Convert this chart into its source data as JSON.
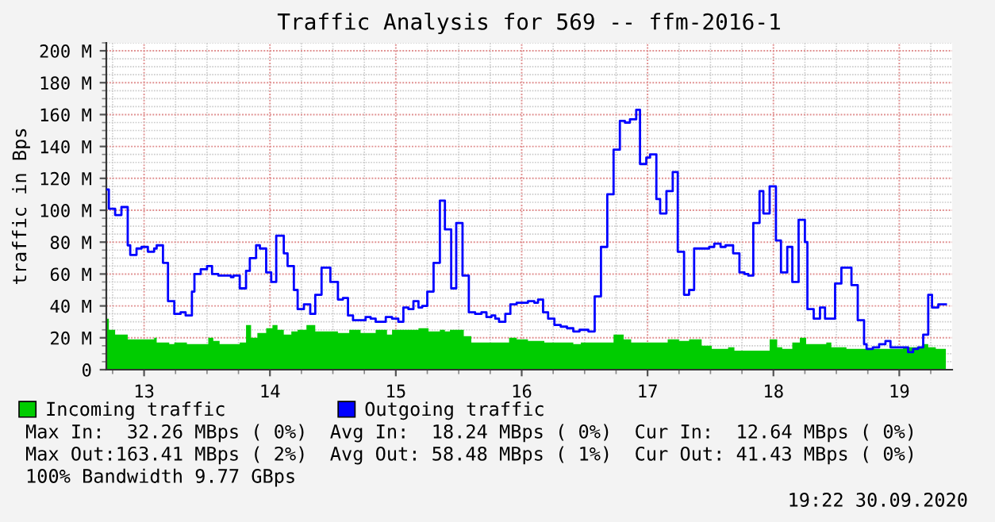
{
  "chart_data": {
    "type": "area",
    "title": "Traffic Analysis for 569 -- ffm-2016-1",
    "ylabel": "traffic in Bps",
    "xlim": [
      12.7,
      19.42
    ],
    "xticks": [
      13,
      14,
      15,
      16,
      17,
      18,
      19
    ],
    "ylim": [
      0,
      205
    ],
    "yticks": [
      {
        "value": 0,
        "label": "0"
      },
      {
        "value": 20,
        "label": "20 M"
      },
      {
        "value": 40,
        "label": "40 M"
      },
      {
        "value": 60,
        "label": "60 M"
      },
      {
        "value": 80,
        "label": "80 M"
      },
      {
        "value": 100,
        "label": "100 M"
      },
      {
        "value": 120,
        "label": "120 M"
      },
      {
        "value": 140,
        "label": "140 M"
      },
      {
        "value": 160,
        "label": "160 M"
      },
      {
        "value": 180,
        "label": "180 M"
      },
      {
        "value": 200,
        "label": "200 M"
      }
    ],
    "grid": true,
    "legend": "bottom",
    "series": [
      {
        "name": "Incoming traffic",
        "color": "#00cc00",
        "x": [
          12.7,
          12.72,
          12.77,
          12.87,
          13.08,
          13.1,
          13.2,
          13.24,
          13.34,
          13.51,
          13.55,
          13.6,
          13.76,
          13.81,
          13.85,
          13.9,
          13.97,
          14.02,
          14.06,
          14.11,
          14.17,
          14.22,
          14.29,
          14.36,
          14.54,
          14.63,
          14.72,
          14.84,
          14.93,
          14.97,
          15.18,
          15.26,
          15.35,
          15.39,
          15.43,
          15.54,
          15.6,
          15.9,
          15.96,
          16.05,
          16.18,
          16.41,
          16.47,
          16.73,
          16.81,
          16.87,
          17.16,
          17.25,
          17.33,
          17.43,
          17.51,
          17.64,
          17.69,
          17.97,
          18.03,
          18.07,
          18.15,
          18.21,
          18.26,
          18.42,
          18.46,
          18.58,
          19.03,
          19.19,
          19.23,
          19.29,
          19.37
        ],
        "values": [
          32,
          25,
          22,
          19,
          20,
          17,
          16,
          17,
          16,
          20,
          18,
          16,
          17,
          28,
          20,
          23,
          26,
          28,
          25,
          22,
          24,
          25,
          28,
          24,
          23,
          25,
          23,
          25,
          22,
          25,
          26,
          24,
          25,
          24,
          25,
          21,
          17,
          20,
          19,
          18,
          17,
          16,
          17,
          22,
          19,
          17,
          19,
          18,
          19,
          15,
          13,
          14,
          12,
          19,
          14,
          13,
          17,
          20,
          16,
          17,
          14,
          13,
          14,
          16,
          14,
          13,
          13
        ]
      },
      {
        "name": "Outgoing traffic",
        "type": "step",
        "color": "#0000ff",
        "x": [
          12.7,
          12.72,
          12.77,
          12.82,
          12.87,
          12.89,
          12.94,
          12.98,
          13.03,
          13.08,
          13.1,
          13.15,
          13.19,
          13.24,
          13.29,
          13.33,
          13.38,
          13.4,
          13.45,
          13.5,
          13.54,
          13.59,
          13.69,
          13.71,
          13.76,
          13.81,
          13.84,
          13.89,
          13.92,
          13.97,
          14.01,
          14.05,
          14.11,
          14.14,
          14.19,
          14.22,
          14.27,
          14.32,
          14.36,
          14.41,
          14.48,
          14.54,
          14.58,
          14.62,
          14.66,
          14.76,
          14.8,
          14.84,
          14.92,
          14.97,
          15.02,
          15.06,
          15.1,
          15.14,
          15.18,
          15.21,
          15.25,
          15.3,
          15.35,
          15.39,
          15.44,
          15.48,
          15.53,
          15.58,
          15.63,
          15.68,
          15.72,
          15.76,
          15.79,
          15.82,
          15.87,
          15.91,
          15.96,
          16.05,
          16.1,
          16.13,
          16.17,
          16.21,
          16.26,
          16.31,
          16.36,
          16.41,
          16.46,
          16.53,
          16.58,
          16.63,
          16.68,
          16.73,
          16.78,
          16.82,
          16.86,
          16.91,
          16.94,
          16.99,
          17.02,
          17.07,
          17.1,
          17.15,
          17.2,
          17.24,
          17.29,
          17.33,
          17.37,
          17.49,
          17.53,
          17.58,
          17.62,
          17.68,
          17.73,
          17.77,
          17.8,
          17.84,
          17.89,
          17.92,
          17.97,
          18.02,
          18.06,
          18.11,
          18.15,
          18.2,
          18.25,
          18.27,
          18.32,
          18.37,
          18.41,
          18.49,
          18.54,
          18.62,
          18.67,
          18.72,
          18.74,
          18.79,
          18.84,
          18.89,
          18.93,
          19.07,
          19.11,
          19.15,
          19.19,
          19.23,
          19.26,
          19.31,
          19.37
        ],
        "values": [
          113,
          101,
          97,
          102,
          78,
          72,
          76,
          77,
          74,
          76,
          78,
          67,
          43,
          35,
          36,
          34,
          49,
          60,
          63,
          65,
          60,
          59,
          58,
          59,
          51,
          62,
          70,
          78,
          76,
          61,
          55,
          84,
          73,
          65,
          50,
          38,
          41,
          35,
          47,
          64,
          55,
          44,
          45,
          34,
          31,
          33,
          32,
          30,
          33,
          32,
          30,
          39,
          38,
          43,
          39,
          40,
          49,
          67,
          106,
          88,
          51,
          92,
          59,
          36,
          35,
          36,
          33,
          34,
          32,
          30,
          35,
          41,
          42,
          43,
          42,
          44,
          36,
          32,
          28,
          27,
          26,
          24,
          25,
          24,
          46,
          77,
          110,
          138,
          156,
          155,
          157,
          163,
          129,
          133,
          135,
          107,
          98,
          112,
          124,
          74,
          47,
          50,
          76,
          77,
          79,
          77,
          78,
          73,
          61,
          60,
          59,
          92,
          112,
          98,
          115,
          81,
          61,
          77,
          55,
          94,
          80,
          38,
          32,
          39,
          32,
          54,
          64,
          53,
          31,
          16,
          13,
          14,
          16,
          18,
          14,
          11,
          13,
          14,
          22,
          47,
          39,
          41,
          41
        ]
      }
    ],
    "annotations": [
      "Max In:  32.26 MBps ( 0%)  Avg In:  18.24 MBps ( 0%)  Cur In:  12.64 MBps ( 0%)",
      "Max Out:163.41 MBps ( 2%)  Avg Out: 58.48 MBps ( 1%)  Cur Out: 41.43 MBps ( 0%)",
      "100% Bandwidth 9.77 GBps",
      "19:22 30.09.2020"
    ]
  }
}
